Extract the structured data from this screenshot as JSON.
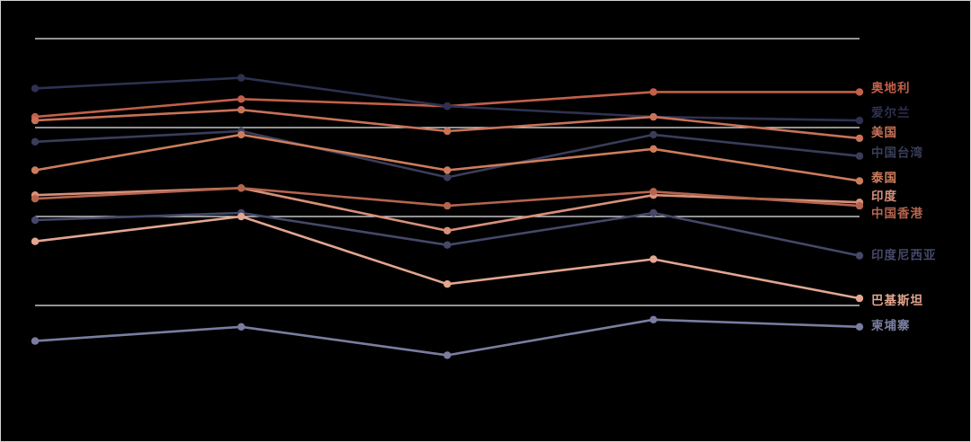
{
  "page": {
    "background_color": "#000000",
    "frame_border_color": "#d2d2d2"
  },
  "chart_data": {
    "type": "line",
    "title": "",
    "xlabel": "",
    "ylabel": "",
    "points_per_series": 5,
    "x_tick_labels_visible": false,
    "y_tick_labels_visible": false,
    "grid_on": true,
    "grid_color": "#ebebeb",
    "y_gridline_values": [
      100,
      75,
      50,
      25
    ],
    "ylim": [
      0,
      105
    ],
    "legend_position": "right-of-line-ends",
    "series": [
      {
        "name": "奥地利",
        "color": "#c2604a",
        "values": [
          78,
          83,
          81,
          85,
          85
        ],
        "label_dy": -4
      },
      {
        "name": "爱尔兰",
        "color": "#2e3150",
        "values": [
          86,
          89,
          81,
          78,
          77
        ],
        "label_dy": -8
      },
      {
        "name": "美国",
        "color": "#c87258",
        "values": [
          77,
          80,
          74,
          78,
          72
        ],
        "label_dy": -6
      },
      {
        "name": "中国台湾",
        "color": "#3a3d5a",
        "values": [
          71,
          74,
          61,
          73,
          67
        ],
        "label_dy": -3
      },
      {
        "name": "泰国",
        "color": "#cd7d5c",
        "values": [
          63,
          73,
          63,
          69,
          60
        ],
        "label_dy": -3
      },
      {
        "name": "印度",
        "color": "#d8907a",
        "values": [
          56,
          58,
          46,
          56,
          54
        ],
        "label_dy": -6
      },
      {
        "name": "中国香港",
        "color": "#b4654f",
        "values": [
          55,
          58,
          53,
          57,
          53
        ],
        "label_dy": 9
      },
      {
        "name": "印度尼西亚",
        "color": "#454868",
        "values": [
          49,
          51,
          42,
          51,
          39
        ],
        "label_dy": 0
      },
      {
        "name": "巴基斯坦",
        "color": "#e2a691",
        "values": [
          43,
          50,
          31,
          38,
          27
        ],
        "label_dy": 3
      },
      {
        "name": "柬埔寨",
        "color": "#7a7da0",
        "values": [
          15,
          19,
          11,
          21,
          19
        ],
        "label_dy": -1
      }
    ]
  }
}
